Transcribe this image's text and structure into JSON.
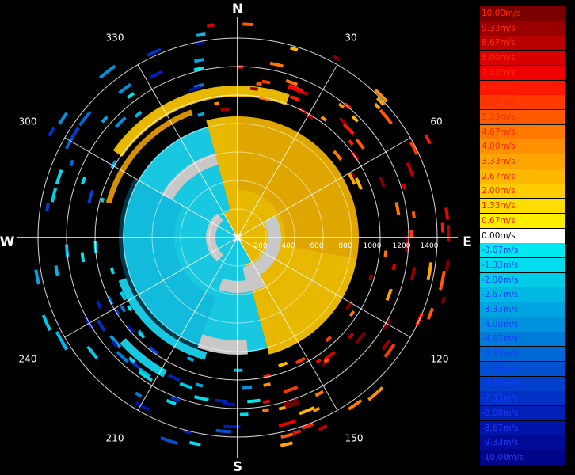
{
  "chart_data": {
    "type": "polar-radar-velocity",
    "compass": {
      "north": "N",
      "south": "S",
      "east": "E",
      "west": "W"
    },
    "azimuth_labels": [
      "30",
      "60",
      "120",
      "150",
      "210",
      "240",
      "300",
      "330"
    ],
    "range_labels": [
      "200",
      "400",
      "600",
      "800",
      "1000",
      "1200",
      "1400"
    ],
    "range_max": 1400,
    "legend": [
      {
        "label": "10.00m/s",
        "color": "#7a0000"
      },
      {
        "label": "9.33m/s",
        "color": "#9a0000"
      },
      {
        "label": "8.67m/s",
        "color": "#b80000"
      },
      {
        "label": "8.00m/s",
        "color": "#d80000"
      },
      {
        "label": "7.33m/s",
        "color": "#f00000"
      },
      {
        "label": "6.67m/s",
        "color": "#ff1800"
      },
      {
        "label": "6.00m/s",
        "color": "#ff3a00"
      },
      {
        "label": "5.33m/s",
        "color": "#ff5a00"
      },
      {
        "label": "4.67m/s",
        "color": "#ff7800"
      },
      {
        "label": "4.00m/s",
        "color": "#ff9000"
      },
      {
        "label": "3.33m/s",
        "color": "#ffa500"
      },
      {
        "label": "2.67m/s",
        "color": "#ffb800"
      },
      {
        "label": "2.00m/s",
        "color": "#ffcc00"
      },
      {
        "label": "1.33m/s",
        "color": "#ffdd00"
      },
      {
        "label": "0.67m/s",
        "color": "#ffee00"
      },
      {
        "label": "0.00m/s",
        "color": "#ffffff"
      },
      {
        "label": "-0.67m/s",
        "color": "#00e8f0"
      },
      {
        "label": "-1.33m/s",
        "color": "#00dcee"
      },
      {
        "label": "-2.00m/s",
        "color": "#00cce8"
      },
      {
        "label": "-2.67m/s",
        "color": "#00b8e4"
      },
      {
        "label": "-3.33m/s",
        "color": "#00a4e0"
      },
      {
        "label": "-4.00m/s",
        "color": "#0090dc"
      },
      {
        "label": "-4.67m/s",
        "color": "#007cd8"
      },
      {
        "label": "-5.33m/s",
        "color": "#0068d4"
      },
      {
        "label": "-6.00m/s",
        "color": "#0050d0"
      },
      {
        "label": "-6.67m/s",
        "color": "#0040cc"
      },
      {
        "label": "-7.33m/s",
        "color": "#0030c4"
      },
      {
        "label": "-8.00m/s",
        "color": "#0020b8"
      },
      {
        "label": "-8.67m/s",
        "color": "#0014a8"
      },
      {
        "label": "-9.33m/s",
        "color": "#000c98"
      },
      {
        "label": "-10.00m/s",
        "color": "#000488"
      }
    ],
    "legend_label_colors": {
      "positive": "#ff2a00",
      "zero": "#ffffff",
      "negative": "#1a3cff"
    },
    "grid": true,
    "field_colors": {
      "receding": "#e8b800",
      "receding_dark": "#d49000",
      "approaching": "#18c8e0",
      "approaching_dark": "#0aa0d0",
      "no_data": "#c8c8c8",
      "axis": "#ffffff",
      "axis_highlight": "#ffff66"
    }
  }
}
